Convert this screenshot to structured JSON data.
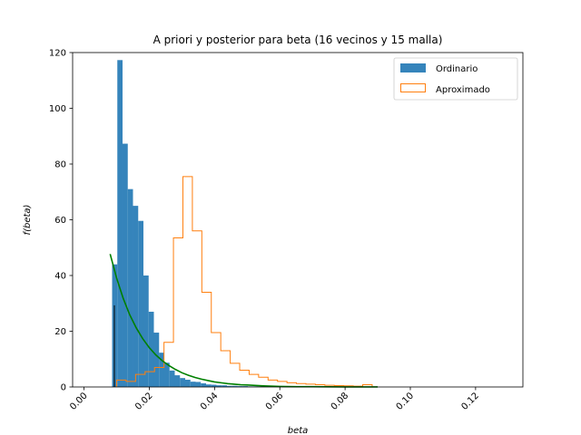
{
  "chart_data": {
    "type": "bar",
    "title": "A priori y posterior para beta (16 vecinos y 15 malla)",
    "xlabel": "beta",
    "ylabel": "f(beta)",
    "xlim": [
      -0.0035,
      0.1345
    ],
    "ylim": [
      0,
      120
    ],
    "xticks": [
      "0.00",
      "0.02",
      "0.04",
      "0.06",
      "0.08",
      "0.10",
      "0.12"
    ],
    "xtick_values": [
      0.0,
      0.02,
      0.04,
      0.06,
      0.08,
      0.1,
      0.12
    ],
    "yticks": [
      "0",
      "20",
      "40",
      "60",
      "80",
      "100",
      "120"
    ],
    "ytick_values": [
      0,
      20,
      40,
      60,
      80,
      100,
      120
    ],
    "x_tick_rotation_deg": 45,
    "grid": false,
    "legend_position": "top-right",
    "colors": {
      "ordinario": "#1f77b4",
      "aproximado": "#ff7f0e",
      "prior": "#008000",
      "marker": "#000000"
    },
    "series": [
      {
        "name": "Ordinario",
        "style": "filled-histogram",
        "bin_edges": [
          0.0086,
          0.0102,
          0.0118,
          0.0134,
          0.015,
          0.0166,
          0.0182,
          0.0198,
          0.0214,
          0.023,
          0.0246,
          0.0262,
          0.0278,
          0.0294,
          0.031,
          0.0326,
          0.0342,
          0.0358,
          0.0374,
          0.039,
          0.0406,
          0.0422,
          0.0438,
          0.0454,
          0.047,
          0.0486,
          0.0502,
          0.0518,
          0.0534,
          0.055,
          0.0566,
          0.0582,
          0.0598
        ],
        "values": [
          44,
          117.3,
          87.3,
          71,
          65,
          59.6,
          40,
          27,
          19.5,
          12.3,
          8.7,
          5.9,
          4.2,
          3.2,
          2.6,
          1.9,
          1.8,
          1.3,
          0.9,
          0.8,
          0.6,
          0.6,
          0.4,
          0.4,
          0.3,
          0.3,
          0.2,
          0.2,
          0.1,
          0.1,
          0.1,
          0.1
        ]
      },
      {
        "name": "Aproximado",
        "style": "step-histogram",
        "bin_edges": [
          0.01,
          0.0129,
          0.0158,
          0.0187,
          0.0216,
          0.0245,
          0.0274,
          0.0303,
          0.0332,
          0.0361,
          0.039,
          0.0419,
          0.0448,
          0.0477,
          0.0506,
          0.0535,
          0.0564,
          0.0593,
          0.0622,
          0.0651,
          0.068,
          0.0709,
          0.0738,
          0.0767,
          0.0796,
          0.0825,
          0.0854,
          0.0883
        ],
        "values": [
          2.5,
          2.0,
          4.5,
          5.5,
          7.0,
          16.0,
          53.5,
          75.5,
          56.0,
          34.0,
          19.5,
          13.0,
          8.5,
          6.0,
          4.5,
          3.5,
          2.5,
          2.0,
          1.5,
          1.2,
          1.0,
          0.8,
          0.6,
          0.5,
          0.4,
          0.3,
          0.8
        ]
      },
      {
        "style": "line",
        "x": [
          0.008,
          0.01,
          0.012,
          0.014,
          0.016,
          0.018,
          0.02,
          0.022,
          0.024,
          0.026,
          0.028,
          0.03,
          0.032,
          0.034,
          0.036,
          0.038,
          0.04,
          0.042,
          0.044,
          0.046,
          0.048,
          0.05,
          0.055,
          0.06,
          0.065,
          0.07,
          0.075,
          0.08,
          0.085,
          0.09
        ],
        "y": [
          47.7,
          39.0,
          31.8,
          25.9,
          21.2,
          17.3,
          14.1,
          11.5,
          9.4,
          7.7,
          6.3,
          5.1,
          4.2,
          3.4,
          2.8,
          2.3,
          1.8,
          1.5,
          1.2,
          1.0,
          0.8,
          0.7,
          0.4,
          0.2,
          0.1,
          0.1,
          0.05,
          0.03,
          0.02,
          0.01
        ]
      },
      {
        "style": "vline",
        "x": 0.0093,
        "y": [
          0,
          29.3
        ]
      }
    ]
  }
}
